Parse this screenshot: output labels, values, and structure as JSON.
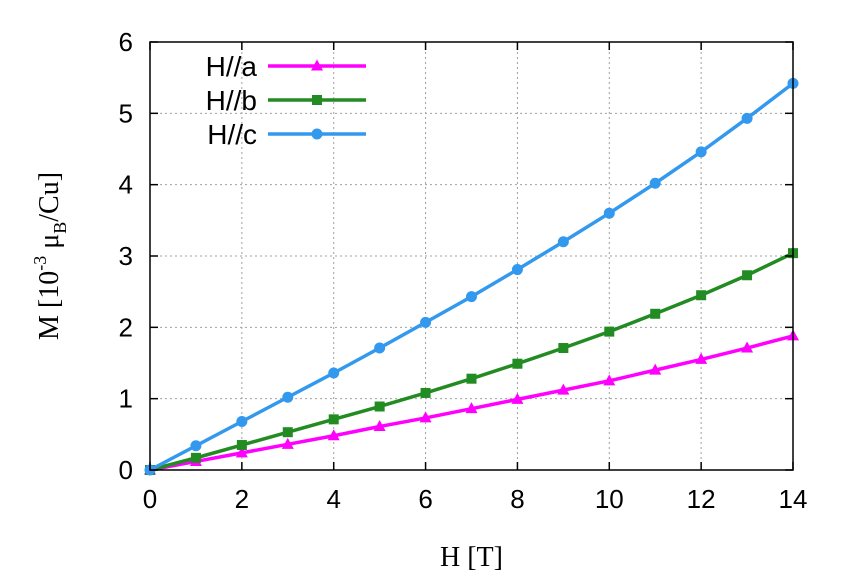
{
  "chart_data": {
    "type": "line",
    "xlabel": "H [T]",
    "ylabel_parts": {
      "base": "M [10",
      "exp": "-3",
      "mid": " μ",
      "sub": "B",
      "end": "/Cu]"
    },
    "xlim": [
      0,
      14
    ],
    "ylim": [
      0,
      6
    ],
    "xticks": [
      0,
      2,
      4,
      6,
      8,
      10,
      12,
      14
    ],
    "yticks": [
      0,
      1,
      2,
      3,
      4,
      5,
      6
    ],
    "grid": true,
    "legend_position": "top-left",
    "series": [
      {
        "name": "H//a",
        "color": "#ff00ff",
        "marker": "triangle",
        "x": [
          0,
          1,
          2,
          3,
          4,
          5,
          6,
          7,
          8,
          9,
          10,
          11,
          12,
          13,
          14
        ],
        "y": [
          0,
          0.12,
          0.24,
          0.36,
          0.48,
          0.61,
          0.73,
          0.86,
          0.99,
          1.12,
          1.25,
          1.4,
          1.55,
          1.71,
          1.88
        ]
      },
      {
        "name": "H//b",
        "color": "#228b22",
        "marker": "square",
        "x": [
          0,
          1,
          2,
          3,
          4,
          5,
          6,
          7,
          8,
          9,
          10,
          11,
          12,
          13,
          14
        ],
        "y": [
          0,
          0.17,
          0.35,
          0.53,
          0.71,
          0.89,
          1.08,
          1.28,
          1.49,
          1.71,
          1.94,
          2.19,
          2.45,
          2.73,
          3.04
        ]
      },
      {
        "name": "H//c",
        "color": "#3399ee",
        "marker": "circle",
        "x": [
          0,
          1,
          2,
          3,
          4,
          5,
          6,
          7,
          8,
          9,
          10,
          11,
          12,
          13,
          14
        ],
        "y": [
          0,
          0.34,
          0.68,
          1.02,
          1.36,
          1.71,
          2.07,
          2.43,
          2.81,
          3.2,
          3.6,
          4.02,
          4.46,
          4.93,
          5.42
        ]
      }
    ]
  }
}
